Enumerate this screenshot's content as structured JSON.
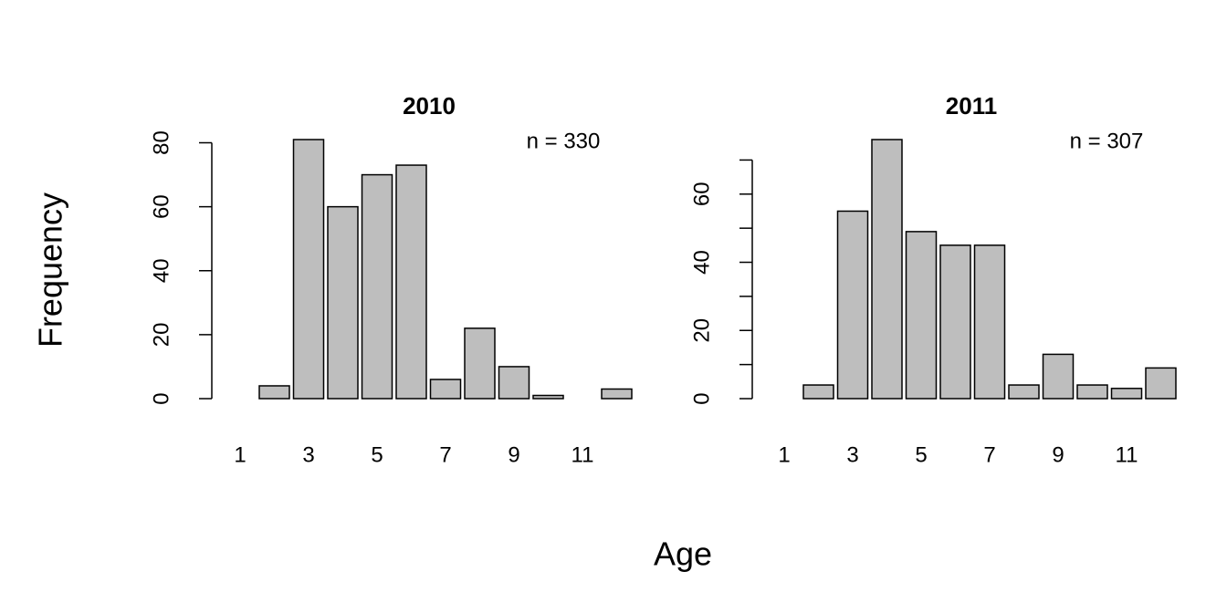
{
  "shared": {
    "xlabel": "Age",
    "ylabel": "Frequency"
  },
  "chart_data": [
    {
      "type": "bar",
      "title": "2010",
      "annotation": "n =  330",
      "categories": [
        1,
        null,
        3,
        null,
        5,
        null,
        7,
        null,
        9,
        null,
        11,
        null
      ],
      "values": [
        0,
        4,
        81,
        60,
        70,
        73,
        6,
        22,
        10,
        1,
        0,
        3
      ],
      "color": "#bebebe",
      "ylim": [
        0,
        81
      ],
      "yticks": [
        0,
        20,
        40,
        60,
        80
      ]
    },
    {
      "type": "bar",
      "title": "2011",
      "annotation": "n =  307",
      "categories": [
        1,
        null,
        3,
        null,
        5,
        null,
        7,
        null,
        9,
        null,
        11,
        null
      ],
      "values": [
        0,
        4,
        55,
        76,
        49,
        45,
        45,
        4,
        13,
        4,
        3,
        9
      ],
      "color": "#bebebe",
      "ylim": [
        0,
        76
      ],
      "yticks": [
        0,
        20,
        40,
        60
      ],
      "yminor_ticks": [
        10,
        30,
        50,
        70
      ]
    }
  ]
}
